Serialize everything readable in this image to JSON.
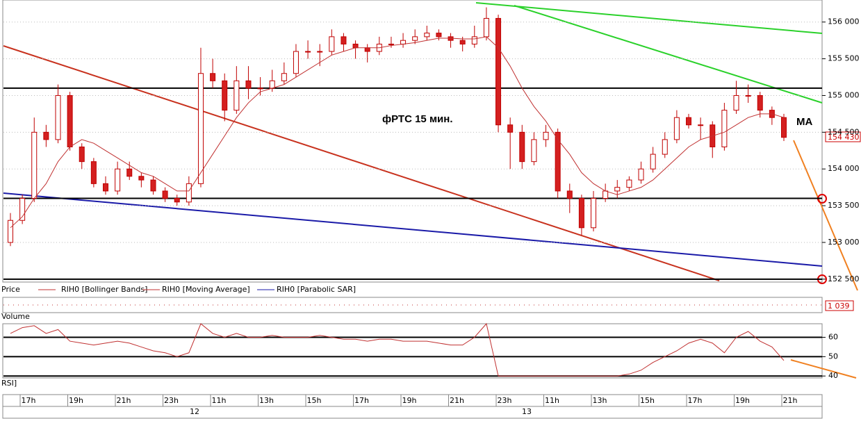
{
  "chart_data": [
    {
      "type": "candlestick",
      "annotation": "фРТС   15 мин.",
      "ma_label": "MA",
      "last_price_label": "154 430",
      "legend": [
        "Price",
        "RIH0 [Bollinger Bands]",
        "RIH0 [Moving Average]",
        "RIH0 [Parabolic SAR]"
      ],
      "volume_title": "Volume",
      "volume_label": "1 039",
      "time_labels": [
        "17h",
        "19h",
        "21h",
        "23h",
        "11h",
        "13h",
        "15h",
        "17h",
        "19h",
        "21h",
        "23h",
        "11h",
        "13h",
        "15h",
        "17h",
        "19h",
        "21h"
      ],
      "date_labels": [
        "12",
        "13"
      ],
      "ylim": [
        152470,
        156300
      ],
      "yticks": [
        {
          "value": 152500,
          "label": "152 500"
        },
        {
          "value": 153000,
          "label": "153 000"
        },
        {
          "value": 153500,
          "label": "153 500"
        },
        {
          "value": 154000,
          "label": "154 000"
        },
        {
          "value": 154500,
          "label": "154 500"
        },
        {
          "value": 155000,
          "label": "155 000"
        },
        {
          "value": 155500,
          "label": "155 500"
        },
        {
          "value": 156000,
          "label": "156 000"
        }
      ],
      "levels": [
        155100,
        153600,
        152500
      ],
      "up_color": "#ffffff",
      "down_color": "#d42020",
      "candle_stroke": "#c00000",
      "ma_color": "#c03030",
      "open": [
        153000,
        153300,
        153600,
        154500,
        154400,
        155000,
        154300,
        154100,
        153800,
        153700,
        154000,
        153900,
        153850,
        153700,
        153600,
        153550,
        153800,
        155300,
        155200,
        154800,
        155200,
        155100,
        155100,
        155200,
        155300,
        155600,
        155600,
        155600,
        155800,
        155700,
        155650,
        155600,
        155700,
        155700,
        155750,
        155800,
        155850,
        155800,
        155750,
        155700,
        155800,
        156050,
        154600,
        154500,
        154100,
        154400,
        154500,
        153700,
        153600,
        153200,
        153600,
        153700,
        153750,
        153850,
        154000,
        154200,
        154400,
        154700,
        154600,
        154600,
        154300,
        154800,
        155000,
        155000,
        154800,
        154700
      ],
      "high": [
        153400,
        153650,
        154700,
        154600,
        155150,
        155050,
        154350,
        154150,
        153900,
        154100,
        154100,
        153950,
        153900,
        153750,
        153650,
        153900,
        155650,
        155500,
        155300,
        155400,
        155400,
        155250,
        155350,
        155450,
        155700,
        155750,
        155700,
        155900,
        155850,
        155750,
        155700,
        155800,
        155800,
        155850,
        155900,
        155950,
        155900,
        155850,
        155800,
        155950,
        156200,
        156100,
        154700,
        154600,
        154500,
        154600,
        154550,
        153800,
        153650,
        153700,
        153800,
        153850,
        153900,
        154100,
        154300,
        154500,
        154800,
        154750,
        154700,
        154650,
        154900,
        155200,
        155150,
        155050,
        154850,
        154750
      ],
      "low": [
        152950,
        153250,
        153550,
        154300,
        154350,
        154250,
        154000,
        153750,
        153650,
        153650,
        153850,
        153750,
        153650,
        153550,
        153500,
        153500,
        153750,
        155100,
        154650,
        154750,
        154950,
        155000,
        155050,
        155150,
        155250,
        155500,
        155400,
        155550,
        155600,
        155500,
        155450,
        155550,
        155650,
        155650,
        155700,
        155750,
        155750,
        155650,
        155600,
        155650,
        155750,
        154500,
        154000,
        154000,
        154050,
        154300,
        153600,
        153400,
        153100,
        153150,
        153550,
        153600,
        153700,
        153800,
        153950,
        154150,
        154350,
        154550,
        154400,
        154150,
        154250,
        154750,
        154900,
        154700,
        154600,
        154380
      ],
      "close": [
        153300,
        153600,
        154500,
        154400,
        155000,
        154300,
        154100,
        153800,
        153700,
        154000,
        153900,
        153850,
        153700,
        153600,
        153550,
        153800,
        155300,
        155200,
        154800,
        155200,
        155100,
        155100,
        155200,
        155300,
        155600,
        155600,
        155600,
        155800,
        155700,
        155650,
        155600,
        155700,
        155700,
        155750,
        155800,
        155850,
        155800,
        155750,
        155700,
        155800,
        156050,
        154600,
        154500,
        154100,
        154400,
        154500,
        153700,
        153600,
        153200,
        153600,
        153700,
        153750,
        153850,
        154000,
        154200,
        154400,
        154700,
        154600,
        154600,
        154300,
        154800,
        155000,
        155000,
        154800,
        154700,
        154430
      ],
      "moving_average": [
        153200,
        153350,
        153600,
        153800,
        154100,
        154300,
        154400,
        154350,
        154250,
        154150,
        154050,
        153950,
        153900,
        153800,
        153700,
        153700,
        153950,
        154200,
        154450,
        154700,
        154900,
        155050,
        155100,
        155150,
        155250,
        155350,
        155450,
        155550,
        155600,
        155650,
        155650,
        155650,
        155680,
        155700,
        155720,
        155750,
        155780,
        155780,
        155770,
        155770,
        155800,
        155650,
        155400,
        155100,
        154850,
        154650,
        154400,
        154200,
        153950,
        153800,
        153700,
        153650,
        153700,
        153750,
        153850,
        154000,
        154150,
        154300,
        154400,
        154450,
        154500,
        154600,
        154700,
        154750,
        154750,
        154700
      ]
    },
    {
      "type": "line",
      "title": "RSI]",
      "ylim": [
        39,
        67
      ],
      "yticks": [
        40,
        50,
        60
      ],
      "color": "#c03030",
      "values": [
        62,
        65,
        66,
        62,
        64,
        58,
        57,
        56,
        57,
        58,
        57,
        55,
        53,
        52,
        50,
        52,
        67,
        62,
        60,
        62,
        60,
        60,
        61,
        60,
        60,
        60,
        61,
        60,
        59,
        59,
        58,
        59,
        59,
        58,
        58,
        58,
        57,
        56,
        56,
        60,
        67,
        40,
        40,
        40,
        40,
        40,
        40,
        40,
        40,
        40,
        40,
        40,
        41,
        43,
        47,
        50,
        53,
        57,
        59,
        57,
        52,
        60,
        63,
        58,
        55,
        48
      ]
    }
  ]
}
